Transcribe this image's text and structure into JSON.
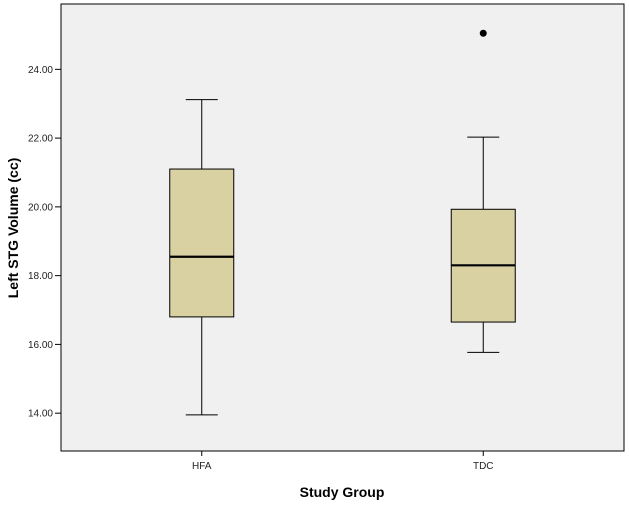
{
  "chart_data": {
    "type": "box",
    "xlabel": "Study Group",
    "ylabel": "Left STG Volume (cc)",
    "categories": [
      "HFA",
      "TDC"
    ],
    "ylim": [
      12.9,
      25.9
    ],
    "yticks": [
      "14.00",
      "16.00",
      "18.00",
      "20.00",
      "22.00",
      "24.00"
    ],
    "boxes": [
      {
        "name": "HFA",
        "min": 13.95,
        "q1": 16.8,
        "median": 18.55,
        "q3": 21.1,
        "max": 23.12,
        "outliers": []
      },
      {
        "name": "TDC",
        "min": 15.77,
        "q1": 16.65,
        "median": 18.3,
        "q3": 19.93,
        "max": 22.03,
        "outliers": [
          25.05
        ]
      }
    ],
    "colors": {
      "box_fill": "#d9d1a1",
      "plot_background": "#f0f0f0",
      "line": "#000000"
    },
    "grid": false,
    "legend": "none"
  }
}
